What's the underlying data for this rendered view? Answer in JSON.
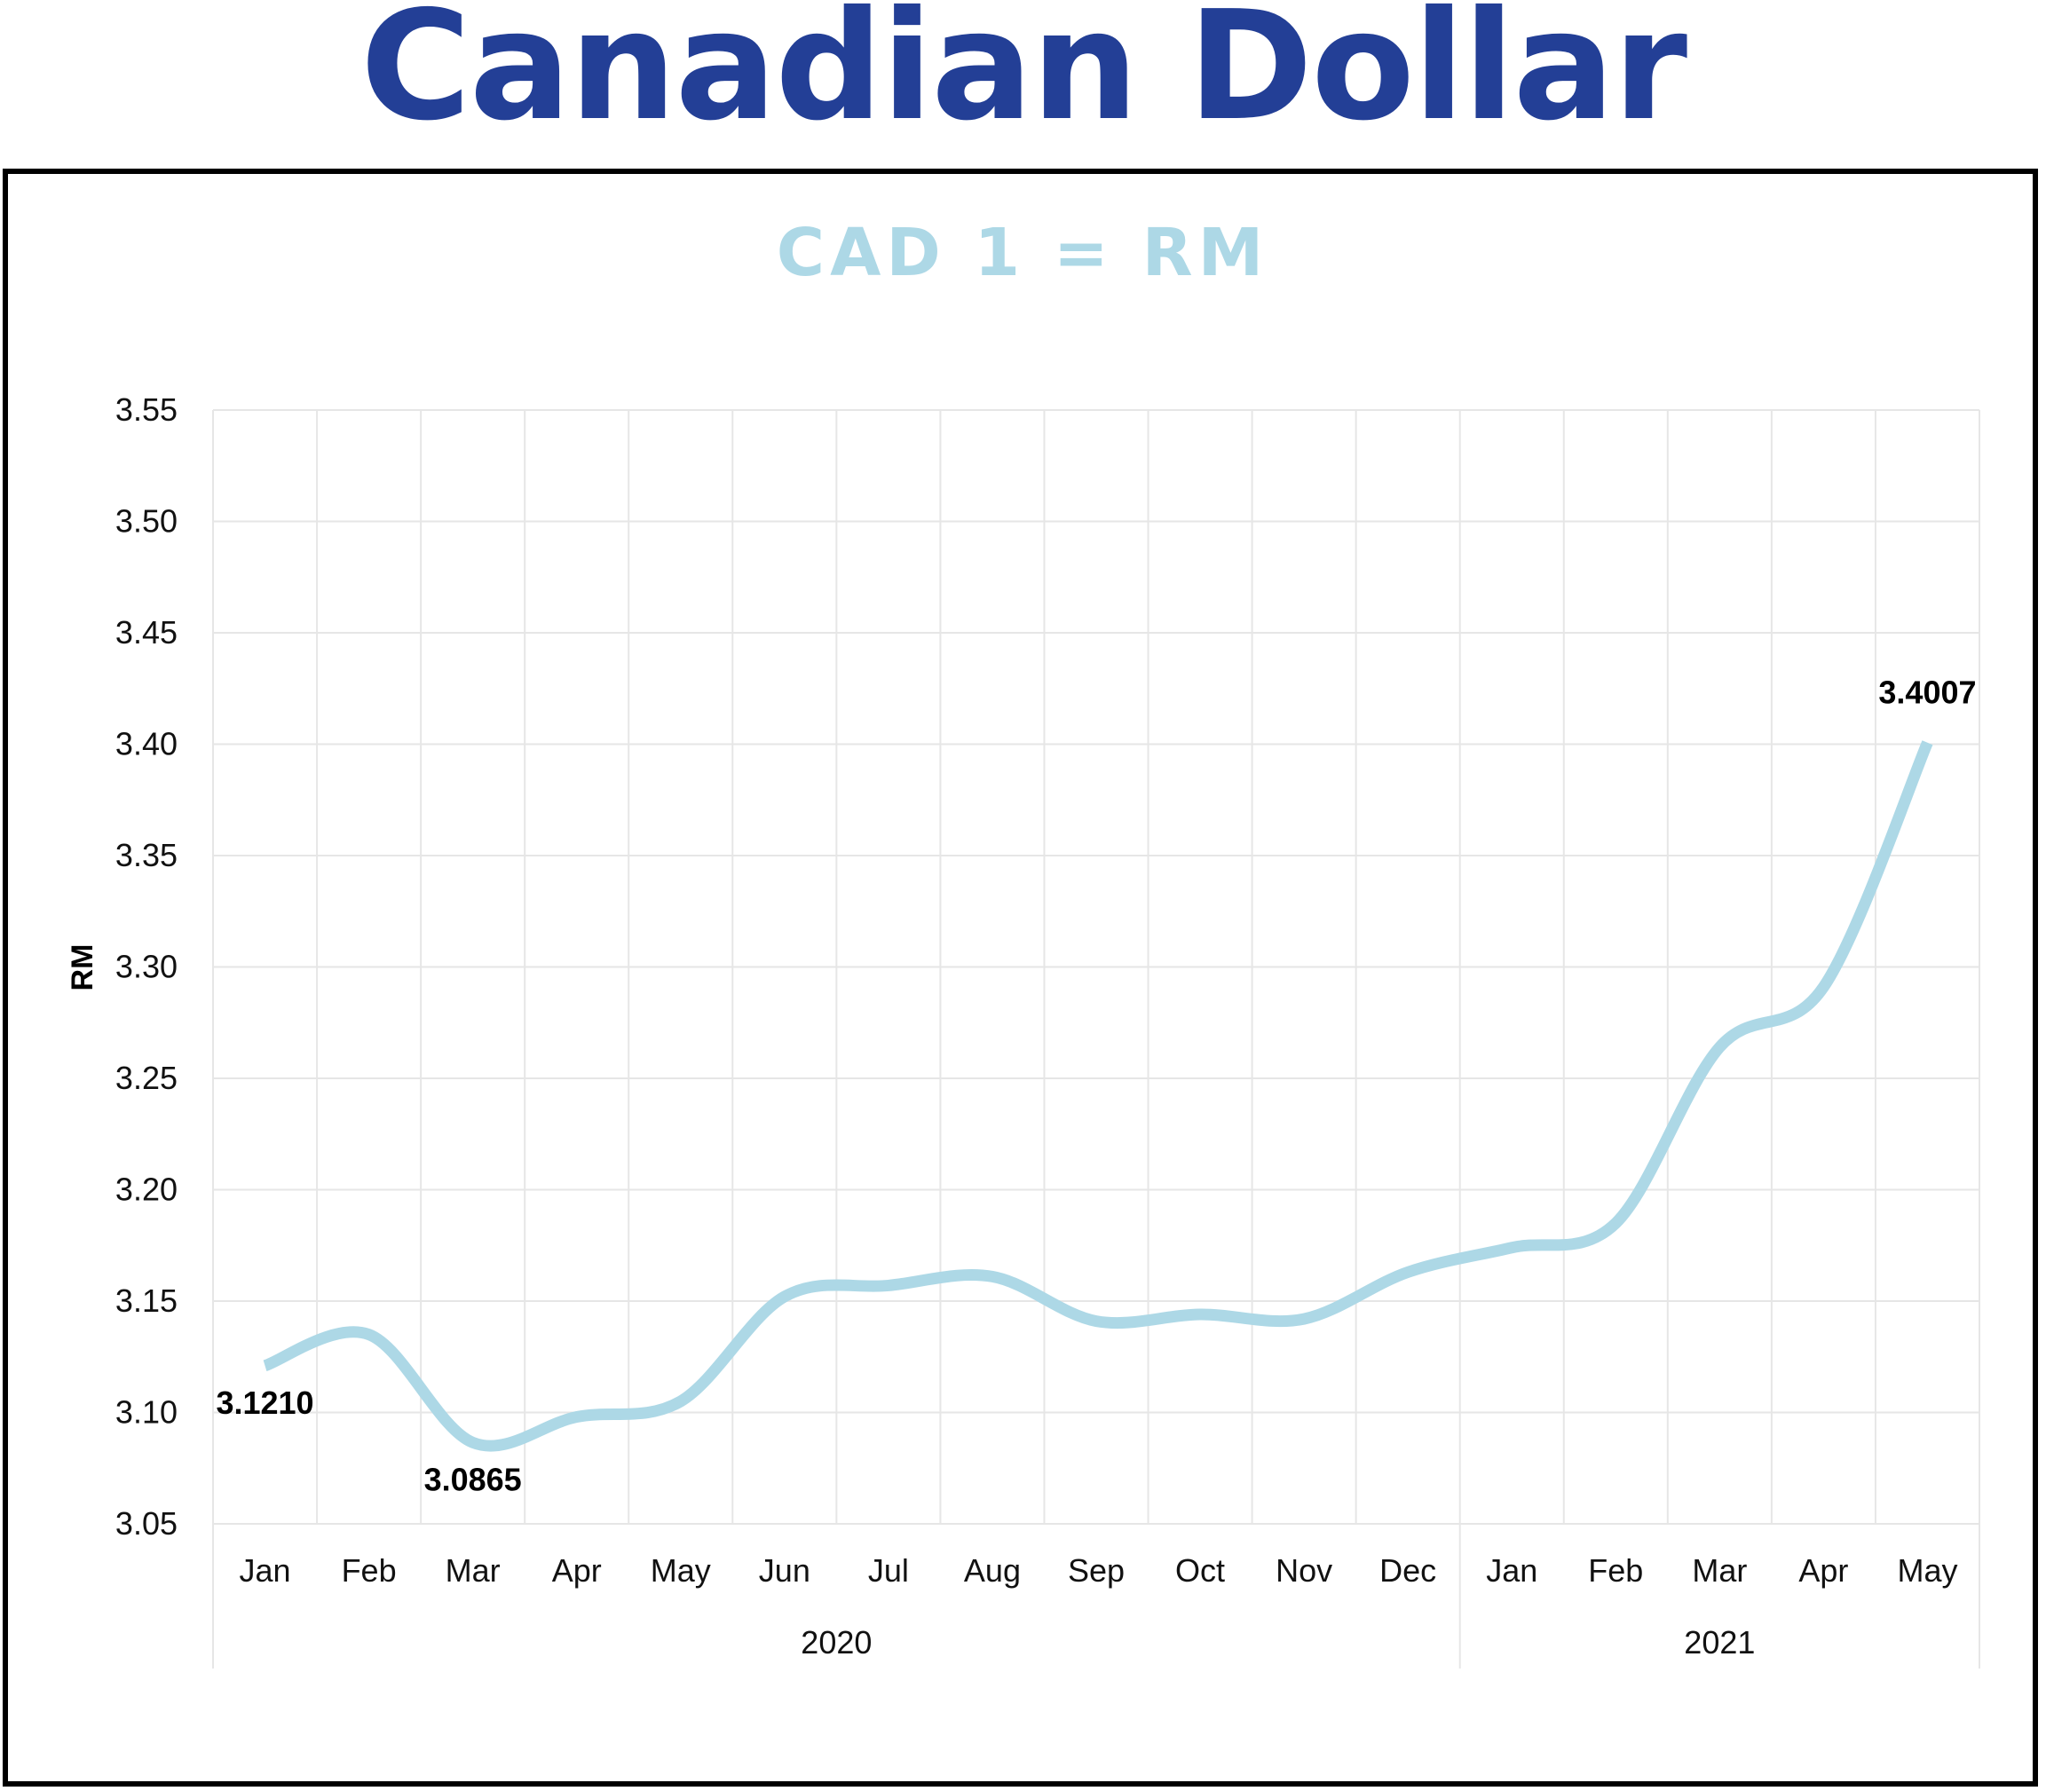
{
  "title": "Canadian Dollar",
  "colors": {
    "title": "#233f96",
    "subtitle": "#add8e6",
    "line": "#add8e6",
    "grid": "#e6e6e6"
  },
  "chart_data": {
    "type": "line",
    "subtitle": "CAD 1 = RM",
    "ylabel": "RM",
    "xlabel": "",
    "ylim": [
      3.05,
      3.55
    ],
    "ytick_labels": [
      "3.05",
      "3.10",
      "3.15",
      "3.20",
      "3.25",
      "3.30",
      "3.35",
      "3.40",
      "3.45",
      "3.50",
      "3.55"
    ],
    "grid": true,
    "categories": [
      "Jan",
      "Feb",
      "Mar",
      "Apr",
      "May",
      "Jun",
      "Jul",
      "Aug",
      "Sep",
      "Oct",
      "Nov",
      "Dec",
      "Jan",
      "Feb",
      "Mar",
      "Apr",
      "May"
    ],
    "groups": [
      {
        "label": "2020",
        "count": 12
      },
      {
        "label": "2021",
        "count": 5
      }
    ],
    "series": [
      {
        "values": [
          3.121,
          3.135,
          3.0865,
          3.098,
          3.105,
          3.152,
          3.157,
          3.161,
          3.141,
          3.144,
          3.142,
          3.163,
          3.174,
          3.185,
          3.264,
          3.291,
          3.4007
        ]
      }
    ],
    "data_labels": [
      {
        "index": 0,
        "text": "3.1210",
        "position": "below"
      },
      {
        "index": 2,
        "text": "3.0865",
        "position": "below"
      },
      {
        "index": 16,
        "text": "3.4007",
        "position": "above"
      }
    ]
  }
}
